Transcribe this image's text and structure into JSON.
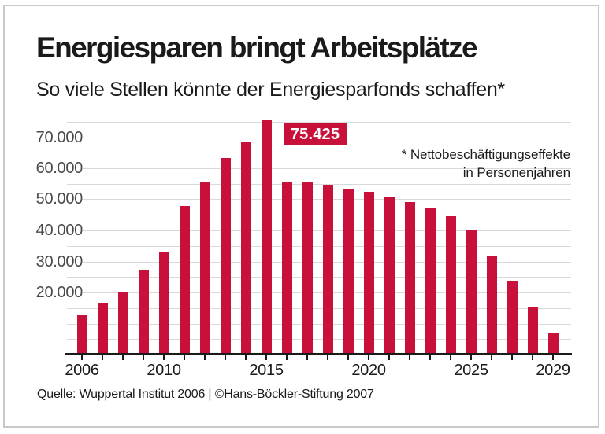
{
  "header": {
    "title": "Energiesparen bringt Arbeitsplätze",
    "subtitle": "So viele Stellen könnte der Energiesparfonds schaffen*"
  },
  "annotation": {
    "line1": "* Nettobeschäftigungseffekte",
    "line2": "in Personenjahren"
  },
  "footer": {
    "source": "Quelle: Wuppertal Institut 2006 | ©Hans-Böckler-Stiftung 2007"
  },
  "colors": {
    "accent_red": "#c8113a",
    "gridline": "#d9d9d9",
    "axis": "#1a1a1a",
    "text_dark": "#1a1a1a",
    "y_label_gray": "#4a4a4a",
    "frame_gray": "#c8c8c8",
    "callout_text": "#ffffff"
  },
  "chart_data": {
    "type": "bar",
    "title": "Energiesparen bringt Arbeitsplätze",
    "subtitle": "So viele Stellen könnte der Energiesparfonds schaffen*",
    "unit": "Personenjahre (Nettobeschäftigungseffekte)",
    "categories": [
      2006,
      2007,
      2008,
      2009,
      2010,
      2011,
      2012,
      2013,
      2014,
      2015,
      2016,
      2017,
      2018,
      2019,
      2020,
      2021,
      2022,
      2023,
      2024,
      2025,
      2026,
      2027,
      2028,
      2029
    ],
    "values": [
      12700,
      16600,
      20100,
      27000,
      33100,
      47800,
      55400,
      63300,
      68400,
      75425,
      55400,
      55600,
      54600,
      53400,
      52300,
      50600,
      49000,
      47200,
      44600,
      40300,
      31900,
      23700,
      15400,
      6900
    ],
    "labeled_point": {
      "category": 2015,
      "value": 75425,
      "label": "75.425"
    },
    "y_ticks": [
      {
        "value": 20000,
        "label": "20.000"
      },
      {
        "value": 30000,
        "label": "30.000"
      },
      {
        "value": 40000,
        "label": "40.000"
      },
      {
        "value": 50000,
        "label": "50.000"
      },
      {
        "value": 60000,
        "label": "60.000"
      },
      {
        "value": 70000,
        "label": "70.000"
      }
    ],
    "x_ticks": [
      {
        "category": 2006,
        "label": "2006"
      },
      {
        "category": 2010,
        "label": "2010"
      },
      {
        "category": 2015,
        "label": "2015"
      },
      {
        "category": 2020,
        "label": "2020"
      },
      {
        "category": 2025,
        "label": "2025"
      },
      {
        "category": 2029,
        "label": "2029"
      }
    ],
    "ylim": [
      0,
      77000
    ],
    "gridline_step": 5000,
    "grid": true,
    "legend": false
  }
}
